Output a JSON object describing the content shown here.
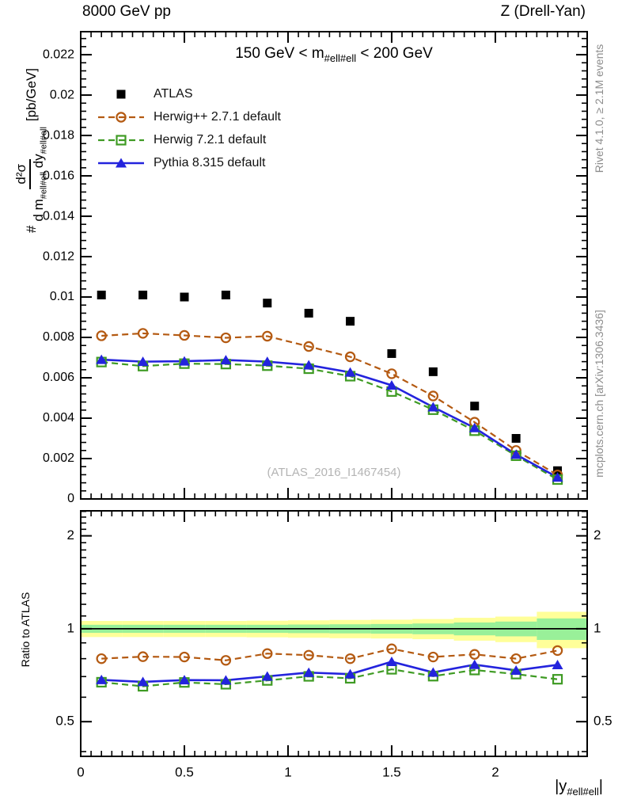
{
  "header": {
    "left": "8000 GeV pp",
    "right": "Z (Drell-Yan)"
  },
  "panel_title": {
    "pre": "150 GeV < m",
    "sub": "#ell#ell",
    "post": " < 200 GeV"
  },
  "watermark": "(ATLAS_2016_I1467454)",
  "side_notes": {
    "top": "Rivet 4.1.0, ≥ 2.1M events",
    "bottom": "mcplots.cern.ch [arXiv:1306.3436]"
  },
  "y_axis_label": {
    "prefix": "#",
    "numerator": "d²σ",
    "den1": "d m",
    "den1_sub": "#ell#ell",
    "den2": " dy",
    "den2_sub": "#ell#ell",
    "units": "[pb/GeV]"
  },
  "ratio_axis_label": "Ratio to ATLAS",
  "x_axis_label": {
    "pre": "|y",
    "sub": "#ell#ell",
    "post": "|"
  },
  "colors": {
    "atlas": "#000000",
    "herwigpp": "#b45a12",
    "herwig7": "#3f9b24",
    "pythia": "#2323dd",
    "band_outer": "#ffff99",
    "band_inner": "#99f099"
  },
  "chart_data": {
    "type": "line",
    "title": "150 GeV < m_#ell#ell < 200 GeV",
    "xlabel": "|y_#ell#ell|",
    "ylabel_main": "# d²σ / (d m_#ell#ell dy_#ell#ell) [pb/GeV]",
    "ylabel_ratio": "Ratio to ATLAS",
    "x": [
      0.1,
      0.3,
      0.5,
      0.7,
      0.9,
      1.1,
      1.3,
      1.5,
      1.7,
      1.9,
      2.1,
      2.3
    ],
    "series": [
      {
        "name": "ATLAS",
        "color": "#000000",
        "marker": "square-filled",
        "line": "none",
        "values": [
          0.0101,
          0.0101,
          0.01,
          0.0101,
          0.0097,
          0.0092,
          0.0088,
          0.0072,
          0.0063,
          0.0046,
          0.003,
          0.0014
        ],
        "ratio": null
      },
      {
        "name": "Herwig++ 2.7.1 default",
        "color": "#b45a12",
        "marker": "circle-open",
        "line": "dashed",
        "values": [
          0.00808,
          0.0082,
          0.0081,
          0.00798,
          0.00806,
          0.00755,
          0.00704,
          0.0062,
          0.0051,
          0.0038,
          0.0024,
          0.00119
        ],
        "ratio": [
          0.8,
          0.812,
          0.81,
          0.79,
          0.831,
          0.821,
          0.8,
          0.861,
          0.81,
          0.826,
          0.8,
          0.85
        ]
      },
      {
        "name": "Herwig 7.2.1 default",
        "color": "#3f9b24",
        "marker": "square-open",
        "line": "dashed",
        "values": [
          0.00678,
          0.00658,
          0.0067,
          0.00668,
          0.0066,
          0.00645,
          0.00608,
          0.00532,
          0.00442,
          0.00338,
          0.00214,
          0.00096
        ],
        "ratio": [
          0.671,
          0.651,
          0.67,
          0.661,
          0.68,
          0.701,
          0.691,
          0.739,
          0.702,
          0.735,
          0.713,
          0.686
        ]
      },
      {
        "name": "Pythia 8.315 default",
        "color": "#2323dd",
        "marker": "triangle-filled",
        "line": "solid",
        "values": [
          0.0069,
          0.0068,
          0.00682,
          0.00688,
          0.0068,
          0.00663,
          0.00627,
          0.00563,
          0.00455,
          0.00352,
          0.0022,
          0.00107
        ],
        "ratio": [
          0.683,
          0.673,
          0.682,
          0.681,
          0.701,
          0.721,
          0.713,
          0.782,
          0.722,
          0.765,
          0.733,
          0.764
        ]
      }
    ],
    "ratio_band": {
      "edges": [
        0,
        0.2,
        0.4,
        0.6,
        0.8,
        1.0,
        1.2,
        1.4,
        1.6,
        1.8,
        2.0,
        2.2,
        2.443
      ],
      "yellow_lo": [
        0.94,
        0.94,
        0.94,
        0.94,
        0.938,
        0.935,
        0.932,
        0.93,
        0.925,
        0.915,
        0.905,
        0.865
      ],
      "yellow_hi": [
        1.06,
        1.06,
        1.06,
        1.06,
        1.062,
        1.065,
        1.068,
        1.07,
        1.075,
        1.085,
        1.095,
        1.135
      ],
      "green_lo": [
        0.97,
        0.97,
        0.97,
        0.97,
        0.97,
        0.968,
        0.966,
        0.964,
        0.96,
        0.952,
        0.945,
        0.92
      ],
      "green_hi": [
        1.03,
        1.03,
        1.03,
        1.03,
        1.03,
        1.032,
        1.034,
        1.036,
        1.04,
        1.048,
        1.055,
        1.08
      ],
      "reference": 1.0
    },
    "x_axis": {
      "min": 0,
      "max": 2.443,
      "major_ticks": [
        0,
        0.5,
        1,
        1.5,
        2
      ],
      "tick_labels": [
        "0",
        "0.5",
        "1",
        "1.5",
        "2"
      ],
      "minor_step": 0.05
    },
    "y_axis_main": {
      "min": 0,
      "max": 0.02314,
      "major_step": 0.002,
      "minor_step": 0.0004,
      "tick_values": [
        0,
        0.002,
        0.004,
        0.006,
        0.008,
        0.01,
        0.012,
        0.014,
        0.016,
        0.018,
        0.02,
        0.022
      ],
      "tick_labels": [
        "0",
        "0.002",
        "0.004",
        "0.006",
        "0.008",
        "0.01",
        "0.012",
        "0.014",
        "0.016",
        "0.018",
        "0.02",
        "0.022"
      ]
    },
    "y_axis_ratio": {
      "scale": "log",
      "min": 0.386,
      "max": 2.41,
      "major_ticks": [
        0.5,
        1,
        2
      ],
      "tick_labels": [
        "0.5",
        "1",
        "2"
      ],
      "minor_ticks": [
        0.4,
        0.6,
        0.7,
        0.8,
        0.9,
        1.1,
        1.2,
        1.3,
        1.4,
        1.5,
        1.6,
        1.7,
        1.8,
        1.9,
        2.1,
        2.2,
        2.3,
        2.4
      ]
    },
    "legend_position": "top-left",
    "grid": false
  }
}
